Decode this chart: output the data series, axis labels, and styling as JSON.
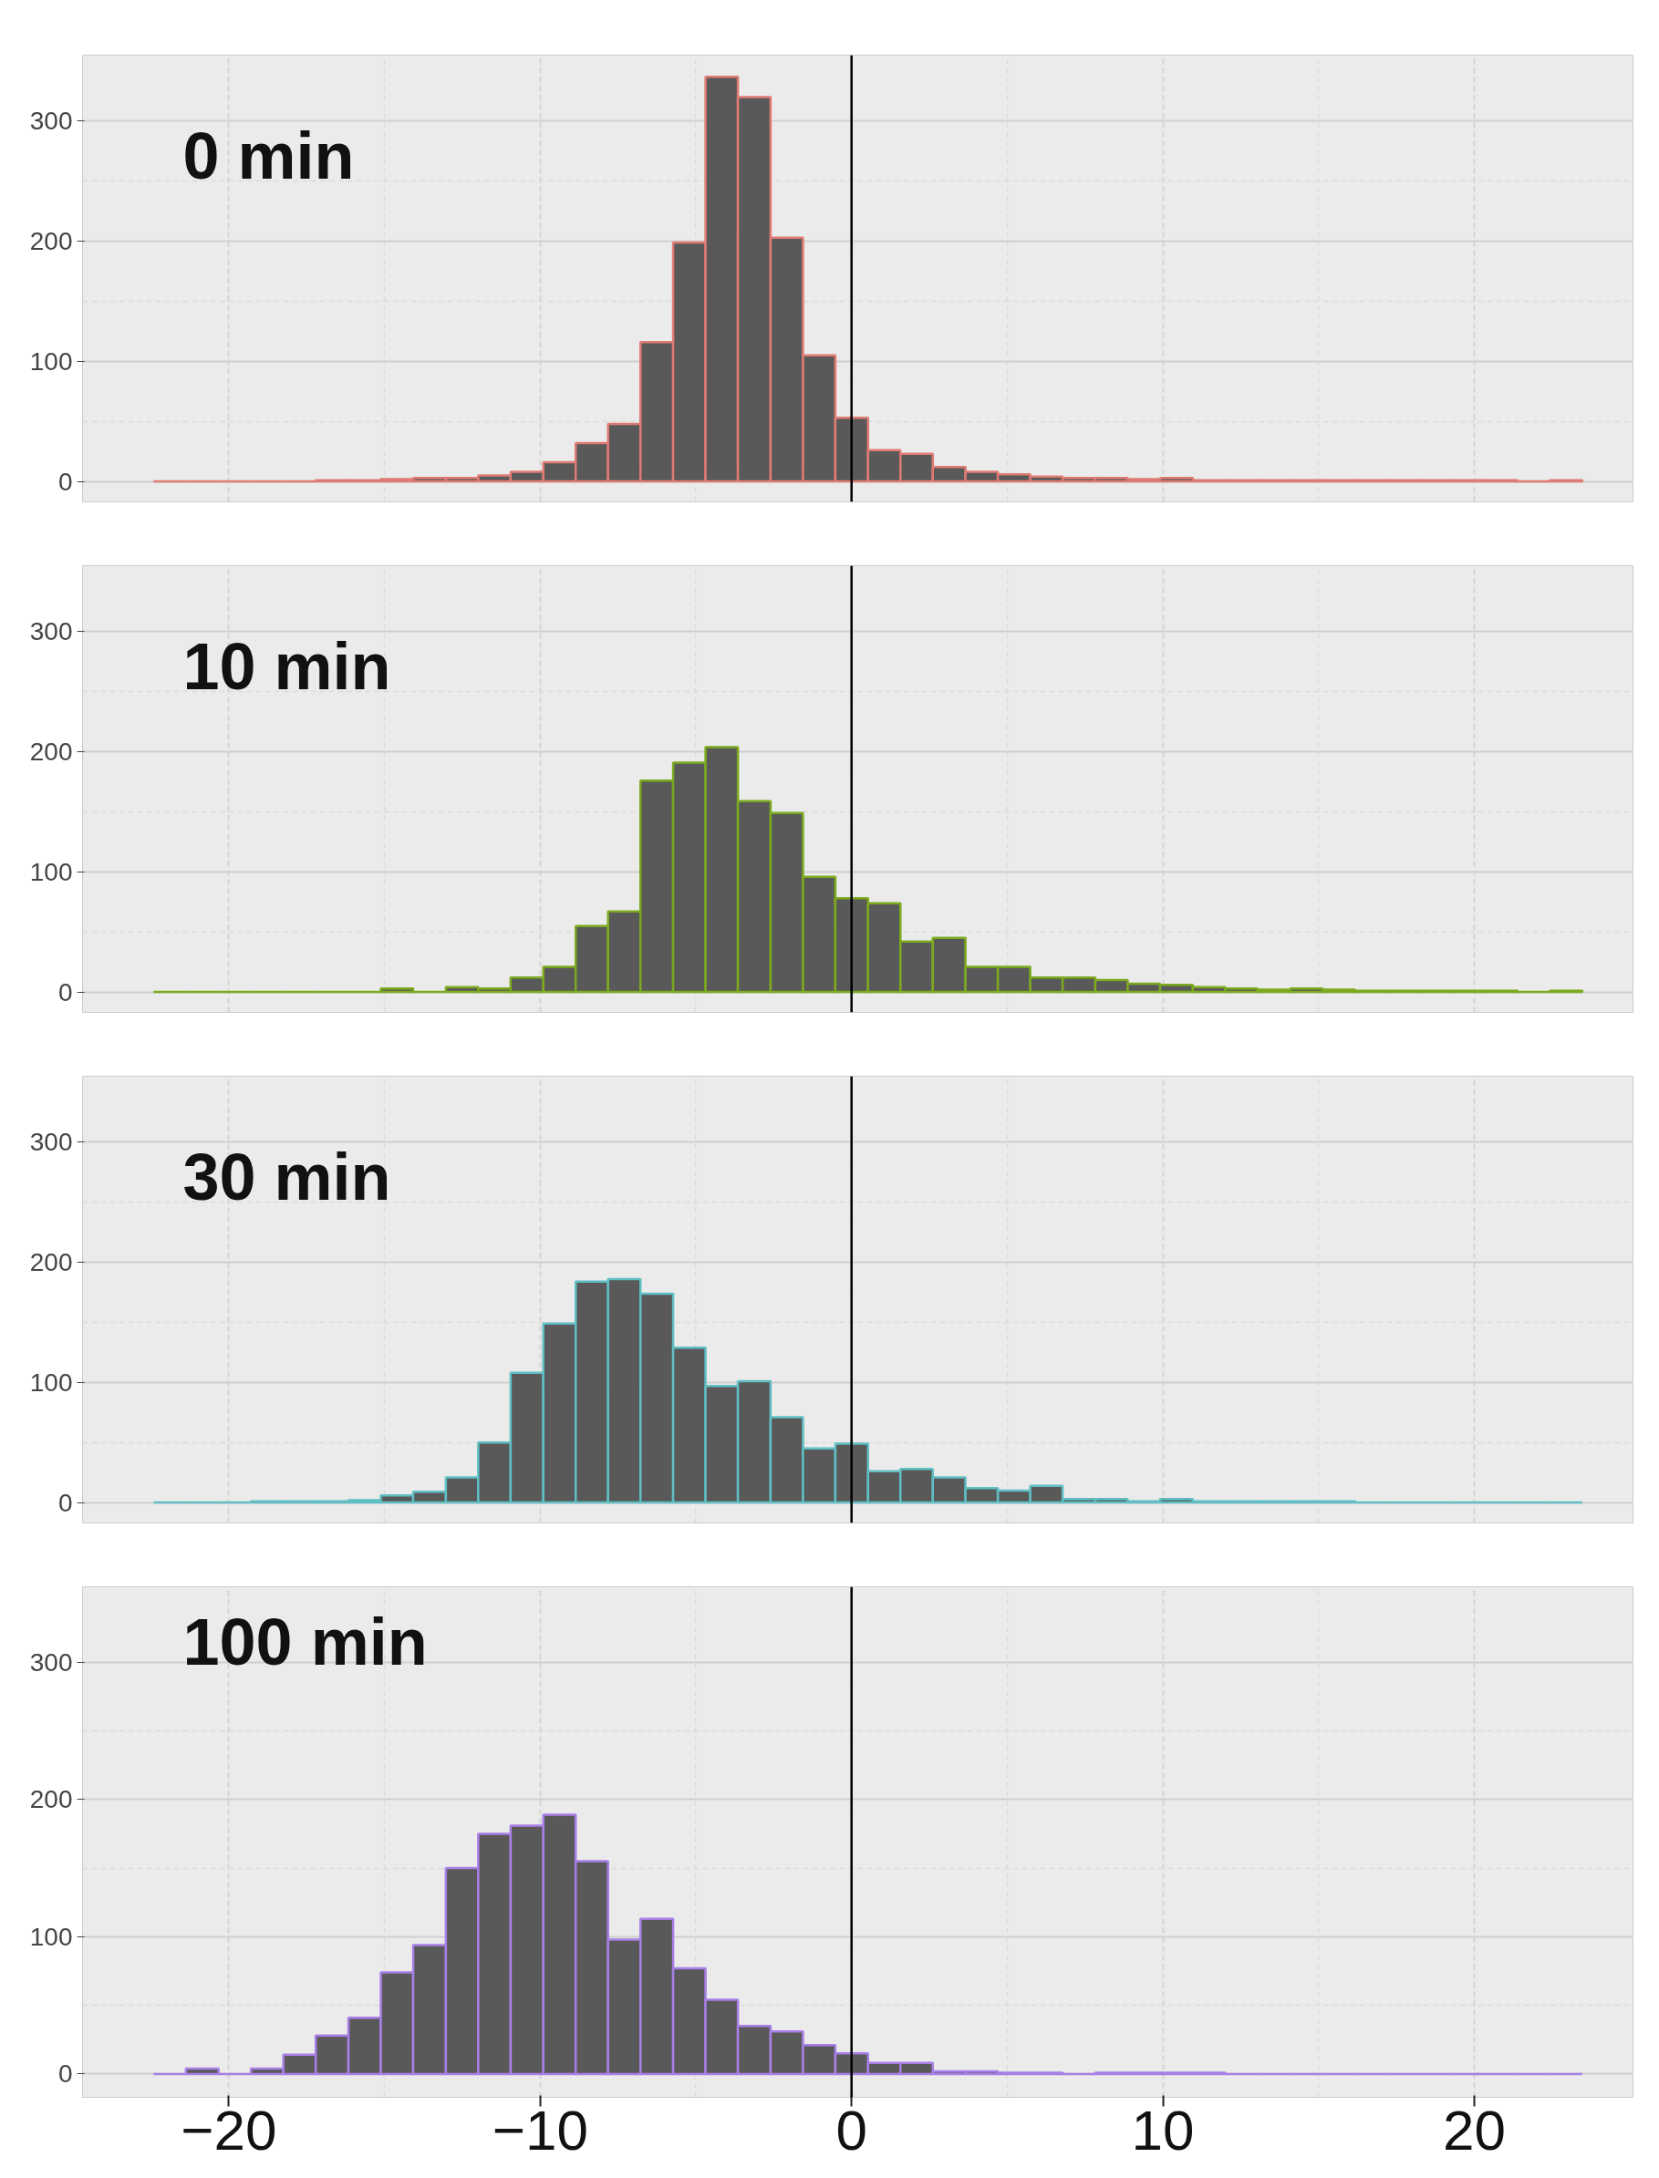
{
  "chart_data": [
    {
      "type": "histogram",
      "annotations": [
        "0 min"
      ],
      "bins": [
        -22.42,
        -21.38,
        -20.33,
        -19.29,
        -18.25,
        -17.21,
        -16.16,
        -15.12,
        -14.08,
        -13.03,
        -11.99,
        -10.95,
        -9.9,
        -8.86,
        -7.82,
        -6.78,
        -5.73,
        -4.69,
        -3.65,
        -2.6,
        -1.56,
        -0.52,
        0.53,
        1.57,
        2.61,
        3.66,
        4.7,
        5.74,
        6.78,
        7.83,
        8.87,
        9.91,
        10.96,
        12.0,
        13.04,
        14.09,
        15.13,
        16.17,
        17.21,
        18.26,
        19.3,
        20.34,
        21.39,
        22.43,
        23.47
      ],
      "series": [
        {
          "color": "#e07b74",
          "values": [
            0,
            0,
            0,
            0,
            0,
            1,
            1,
            2,
            3,
            3,
            5,
            8,
            16,
            32,
            48,
            116,
            199,
            337,
            320,
            203,
            105,
            53,
            26,
            23,
            12,
            8,
            6,
            4,
            3,
            3,
            2,
            3,
            1,
            1,
            1,
            1,
            1,
            1,
            1,
            1,
            1,
            1,
            0,
            1
          ]
        }
      ],
      "xlim": [
        -24.7,
        25.1
      ],
      "ylim": [
        -17,
        355
      ],
      "xticks": [
        -20,
        -10,
        0,
        10,
        20
      ],
      "yticks": [
        0,
        100,
        200,
        300
      ],
      "tick_labels": "y",
      "grid": true,
      "ref_lines": [
        {
          "axis": "x",
          "value": 0,
          "color": "#000000"
        }
      ]
    },
    {
      "type": "histogram",
      "annotations": [
        "10 min"
      ],
      "bins": [
        -22.42,
        -21.38,
        -20.33,
        -19.29,
        -18.25,
        -17.21,
        -16.16,
        -15.12,
        -14.08,
        -13.03,
        -11.99,
        -10.95,
        -9.9,
        -8.86,
        -7.82,
        -6.78,
        -5.73,
        -4.69,
        -3.65,
        -2.6,
        -1.56,
        -0.52,
        0.53,
        1.57,
        2.61,
        3.66,
        4.7,
        5.74,
        6.78,
        7.83,
        8.87,
        9.91,
        10.96,
        12.0,
        13.04,
        14.09,
        15.13,
        16.17,
        17.21,
        18.26,
        19.3,
        20.34,
        21.39,
        22.43,
        23.47
      ],
      "series": [
        {
          "color": "#7caa1e",
          "values": [
            0,
            0,
            0,
            0,
            0,
            0,
            0,
            3,
            0,
            4,
            3,
            12,
            21,
            55,
            67,
            176,
            191,
            204,
            159,
            149,
            96,
            78,
            74,
            42,
            45,
            21,
            21,
            12,
            12,
            10,
            7,
            6,
            4,
            3,
            2,
            3,
            2,
            1,
            1,
            1,
            1,
            1,
            0,
            1
          ]
        }
      ],
      "xlim": [
        -24.7,
        25.1
      ],
      "ylim": [
        -17,
        355
      ],
      "xticks": [
        -20,
        -10,
        0,
        10,
        20
      ],
      "yticks": [
        0,
        100,
        200,
        300
      ],
      "tick_labels": "y",
      "grid": true,
      "ref_lines": [
        {
          "axis": "x",
          "value": 0,
          "color": "#000000"
        }
      ]
    },
    {
      "type": "histogram",
      "annotations": [
        "30 min"
      ],
      "bins": [
        -22.42,
        -21.38,
        -20.33,
        -19.29,
        -18.25,
        -17.21,
        -16.16,
        -15.12,
        -14.08,
        -13.03,
        -11.99,
        -10.95,
        -9.9,
        -8.86,
        -7.82,
        -6.78,
        -5.73,
        -4.69,
        -3.65,
        -2.6,
        -1.56,
        -0.52,
        0.53,
        1.57,
        2.61,
        3.66,
        4.7,
        5.74,
        6.78,
        7.83,
        8.87,
        9.91,
        10.96,
        12.0,
        13.04,
        14.09,
        15.13,
        16.17,
        17.21,
        18.26,
        19.3,
        20.34,
        21.39,
        22.43,
        23.47
      ],
      "series": [
        {
          "color": "#5fbfc4",
          "values": [
            0,
            0,
            0,
            1,
            1,
            1,
            2,
            6,
            9,
            21,
            50,
            108,
            149,
            184,
            186,
            174,
            129,
            97,
            101,
            71,
            45,
            49,
            26,
            28,
            21,
            12,
            10,
            14,
            3,
            3,
            1,
            3,
            1,
            1,
            1,
            1,
            1,
            0,
            0,
            0,
            0,
            0,
            0,
            0
          ]
        }
      ],
      "xlim": [
        -24.7,
        25.1
      ],
      "ylim": [
        -17,
        355
      ],
      "xticks": [
        -20,
        -10,
        0,
        10,
        20
      ],
      "yticks": [
        0,
        100,
        200,
        300
      ],
      "tick_labels": "y",
      "grid": true,
      "ref_lines": [
        {
          "axis": "x",
          "value": 0,
          "color": "#000000"
        }
      ]
    },
    {
      "type": "histogram",
      "annotations": [
        "100 min"
      ],
      "bins": [
        -22.42,
        -21.38,
        -20.33,
        -19.29,
        -18.25,
        -17.21,
        -16.16,
        -15.12,
        -14.08,
        -13.03,
        -11.99,
        -10.95,
        -9.9,
        -8.86,
        -7.82,
        -6.78,
        -5.73,
        -4.69,
        -3.65,
        -2.6,
        -1.56,
        -0.52,
        0.53,
        1.57,
        2.61,
        3.66,
        4.7,
        5.74,
        6.78,
        7.83,
        8.87,
        9.91,
        10.96,
        12.0,
        13.04,
        14.09,
        15.13,
        16.17,
        17.21,
        18.26,
        19.3,
        20.34,
        21.39,
        22.43,
        23.47
      ],
      "series": [
        {
          "color": "#a77fe6",
          "values": [
            0,
            4,
            0,
            4,
            14,
            28,
            41,
            74,
            94,
            150,
            175,
            181,
            189,
            155,
            98,
            113,
            77,
            54,
            35,
            31,
            21,
            15,
            8,
            8,
            2,
            2,
            1,
            1,
            0,
            1,
            1,
            1,
            1,
            0,
            0,
            0,
            0,
            0,
            0,
            0,
            0,
            0,
            0,
            0
          ]
        }
      ],
      "xlim": [
        -24.7,
        25.1
      ],
      "ylim": [
        -17,
        355
      ],
      "xticks": [
        -20,
        -10,
        0,
        10,
        20
      ],
      "yticks": [
        0,
        100,
        200,
        300
      ],
      "grid": true,
      "ref_lines": [
        {
          "axis": "x",
          "value": 0,
          "color": "#000000"
        }
      ]
    }
  ]
}
